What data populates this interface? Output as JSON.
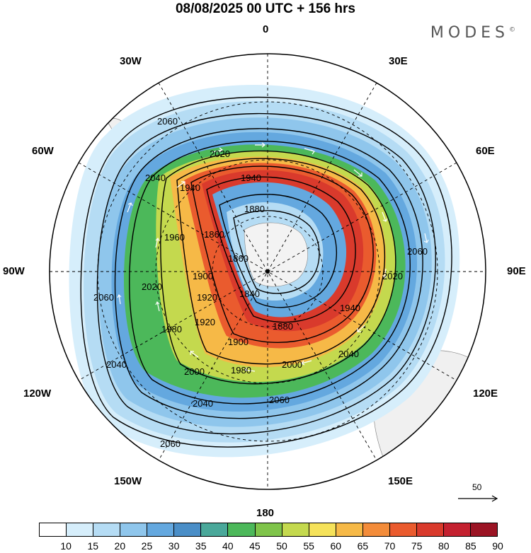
{
  "header": {
    "title": "08/08/2025  00 UTC  + 156 hrs",
    "brand": "MODES"
  },
  "longitude_labels": {
    "lon_0": "0",
    "lon_30e": "30E",
    "lon_60e": "60E",
    "lon_90e": "90E",
    "lon_120e": "120E",
    "lon_150e": "150E",
    "lon_180": "180",
    "lon_150w": "150W",
    "lon_120w": "120W",
    "lon_90w": "90W",
    "lon_60w": "60W",
    "lon_30w": "30W"
  },
  "contour_labels": [
    "2060",
    "2020",
    "2040",
    "1940",
    "1940",
    "1880",
    "1960",
    "1860",
    "1900",
    "1860",
    "1840",
    "2060",
    "2020",
    "1980",
    "1920",
    "1880",
    "1900",
    "2020",
    "1940",
    "2040",
    "2000",
    "1980",
    "2000",
    "2040",
    "2060",
    "2060",
    "2040",
    "2060",
    "1920"
  ],
  "reference_vector": {
    "label": "50"
  },
  "colorbar": {
    "levels": [
      "10",
      "15",
      "20",
      "25",
      "30",
      "35",
      "40",
      "45",
      "50",
      "55",
      "60",
      "65",
      "70",
      "75",
      "80",
      "85",
      "90"
    ],
    "colors": [
      "#ffffff",
      "#d6eefb",
      "#b5dcf4",
      "#8fc6ec",
      "#64a8df",
      "#4a8ec7",
      "#4aa89a",
      "#4cb85a",
      "#7fc44a",
      "#c4d94e",
      "#f5e25a",
      "#f6b947",
      "#f38c3a",
      "#ea5b2e",
      "#d93a2c",
      "#c42130",
      "#9b1424"
    ]
  },
  "map": {
    "projection": "south polar stereographic",
    "land_color": "#f0f0f0",
    "coast_color": "#888888",
    "grid_style": "dashed"
  }
}
